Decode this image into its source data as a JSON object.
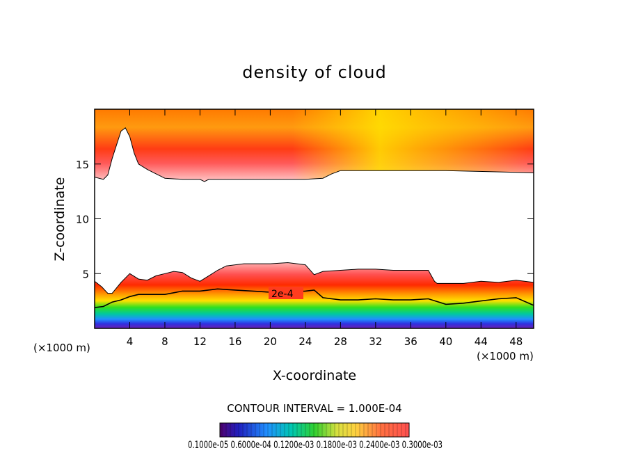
{
  "chart_data": {
    "type": "heatmap",
    "title": "density of cloud",
    "xlabel": "X-coordinate",
    "ylabel": "Z-coordinate",
    "x_unit": "(×1000 m)",
    "x_unit_right": "(×1000 m)",
    "xlim": [
      0,
      50
    ],
    "ylim": [
      0,
      20
    ],
    "x_ticks": [
      "4",
      "8",
      "12",
      "16",
      "20",
      "24",
      "28",
      "32",
      "36",
      "40",
      "44",
      "48"
    ],
    "x_tick_values": [
      4,
      8,
      12,
      16,
      20,
      24,
      28,
      32,
      36,
      40,
      44,
      48
    ],
    "y_ticks": [
      "5",
      "10",
      "15"
    ],
    "y_tick_values": [
      5,
      10,
      15
    ],
    "contour_label": "2e-4",
    "contour_interval_text": "CONTOUR INTERVAL = 1.000E-04",
    "colorbar_labels_text": "0.1000e-05  0.6000e-04  0.1200e-03  0.1800e-03  0.2400e-03  0.3000e-03",
    "colorbar_range": [
      1e-06,
      0.0003
    ],
    "upper_layer": {
      "bottom_z": [
        [
          0,
          13.8
        ],
        [
          1,
          13.6
        ],
        [
          1.5,
          14
        ],
        [
          2,
          15.5
        ],
        [
          3,
          18
        ],
        [
          3.5,
          18.3
        ],
        [
          4,
          17.5
        ],
        [
          4.5,
          16
        ],
        [
          5,
          15
        ],
        [
          6,
          14.5
        ],
        [
          7,
          14.1
        ],
        [
          8,
          13.7
        ],
        [
          10,
          13.6
        ],
        [
          12,
          13.6
        ],
        [
          12.5,
          13.4
        ],
        [
          13,
          13.6
        ],
        [
          16,
          13.6
        ],
        [
          20,
          13.6
        ],
        [
          24,
          13.6
        ],
        [
          26,
          13.7
        ],
        [
          27,
          14.1
        ],
        [
          28,
          14.4
        ],
        [
          30,
          14.4
        ],
        [
          35,
          14.4
        ],
        [
          40,
          14.4
        ],
        [
          45,
          14.3
        ],
        [
          50,
          14.2
        ]
      ],
      "peak_value": 0.0003
    },
    "lower_layer": {
      "top_z": [
        [
          0,
          4.3
        ],
        [
          0.8,
          3.8
        ],
        [
          1.5,
          3.2
        ],
        [
          2,
          3.2
        ],
        [
          3,
          4.2
        ],
        [
          4,
          5
        ],
        [
          5,
          4.5
        ],
        [
          6,
          4.4
        ],
        [
          7,
          4.8
        ],
        [
          8,
          5
        ],
        [
          9,
          5.2
        ],
        [
          10,
          5.1
        ],
        [
          11,
          4.6
        ],
        [
          12,
          4.3
        ],
        [
          13,
          4.8
        ],
        [
          14,
          5.3
        ],
        [
          15,
          5.7
        ],
        [
          17,
          5.9
        ],
        [
          20,
          5.9
        ],
        [
          22,
          6
        ],
        [
          24,
          5.8
        ],
        [
          25,
          4.9
        ],
        [
          26,
          5.2
        ],
        [
          28,
          5.3
        ],
        [
          30,
          5.4
        ],
        [
          32,
          5.4
        ],
        [
          34,
          5.3
        ],
        [
          36,
          5.3
        ],
        [
          38,
          5.3
        ],
        [
          38.7,
          4.3
        ],
        [
          39,
          4.1
        ],
        [
          40,
          4.1
        ],
        [
          42,
          4.1
        ],
        [
          44,
          4.3
        ],
        [
          46,
          4.2
        ],
        [
          48,
          4.4
        ],
        [
          50,
          4.2
        ]
      ],
      "contour_2e4_z": [
        [
          0,
          1.9
        ],
        [
          1,
          2
        ],
        [
          2,
          2.4
        ],
        [
          3,
          2.6
        ],
        [
          4,
          2.9
        ],
        [
          5,
          3.1
        ],
        [
          6,
          3.1
        ],
        [
          8,
          3.1
        ],
        [
          10,
          3.4
        ],
        [
          12,
          3.4
        ],
        [
          14,
          3.6
        ],
        [
          16,
          3.5
        ],
        [
          18,
          3.4
        ],
        [
          20,
          3.3
        ],
        [
          22,
          3.3
        ],
        [
          24,
          3.4
        ],
        [
          25,
          3.5
        ],
        [
          26,
          2.8
        ],
        [
          28,
          2.6
        ],
        [
          30,
          2.6
        ],
        [
          32,
          2.7
        ],
        [
          34,
          2.6
        ],
        [
          36,
          2.6
        ],
        [
          38,
          2.7
        ],
        [
          40,
          2.2
        ],
        [
          42,
          2.3
        ],
        [
          44,
          2.5
        ],
        [
          46,
          2.7
        ],
        [
          48,
          2.8
        ],
        [
          50,
          2.1
        ]
      ],
      "peak_value": 0.0003
    }
  }
}
